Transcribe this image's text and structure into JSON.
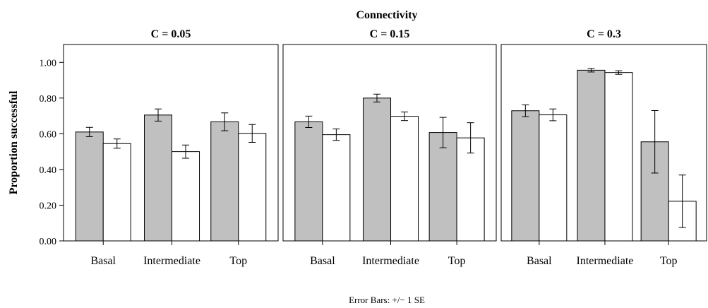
{
  "chart_data": {
    "type": "bar",
    "title": "Connectivity",
    "ylabel": "Proportion successful",
    "xlabel": "",
    "ylim": [
      0,
      1.1
    ],
    "yticks": [
      "0.00",
      "0.20",
      "0.40",
      "0.60",
      "0.80",
      "1.00"
    ],
    "ytick_values": [
      0,
      0.2,
      0.4,
      0.6,
      0.8,
      1.0
    ],
    "categories": [
      "Basal",
      "Intermediate",
      "Top"
    ],
    "footnote": "Error Bars: +/− 1 SE",
    "colors": {
      "series_a": "#c0c0c0",
      "series_b": "#ffffff",
      "stroke": "#000000"
    },
    "panels": [
      {
        "label": "C = 0.05",
        "series": [
          {
            "values": [
              0.61,
              0.705,
              0.667
            ],
            "se": [
              0.026,
              0.034,
              0.05
            ]
          },
          {
            "values": [
              0.545,
              0.5,
              0.602
            ],
            "se": [
              0.026,
              0.037,
              0.05
            ]
          }
        ]
      },
      {
        "label": "C = 0.15",
        "series": [
          {
            "values": [
              0.667,
              0.8,
              0.607
            ],
            "se": [
              0.032,
              0.022,
              0.085
            ]
          },
          {
            "values": [
              0.595,
              0.698,
              0.577
            ],
            "se": [
              0.032,
              0.024,
              0.085
            ]
          }
        ]
      },
      {
        "label": "C = 0.3",
        "series": [
          {
            "values": [
              0.729,
              0.956,
              0.555
            ],
            "se": [
              0.033,
              0.01,
              0.175
            ]
          },
          {
            "values": [
              0.706,
              0.943,
              0.222
            ],
            "se": [
              0.033,
              0.01,
              0.147
            ]
          }
        ]
      }
    ]
  }
}
